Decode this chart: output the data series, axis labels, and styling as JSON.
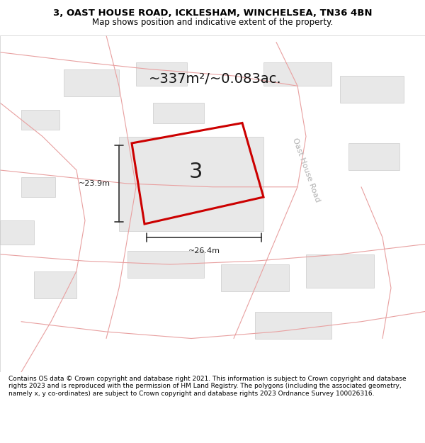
{
  "title": "3, OAST HOUSE ROAD, ICKLESHAM, WINCHELSEA, TN36 4BN",
  "subtitle": "Map shows position and indicative extent of the property.",
  "footer": "Contains OS data © Crown copyright and database right 2021. This information is subject to Crown copyright and database rights 2023 and is reproduced with the permission of HM Land Registry. The polygons (including the associated geometry, namely x, y co-ordinates) are subject to Crown copyright and database rights 2023 Ordnance Survey 100026316.",
  "area_label": "~337m²/~0.083ac.",
  "plot_number": "3",
  "dim_width": "~26.4m",
  "dim_height": "~23.9m",
  "road_label": "Oast House Road",
  "background_color": "#ffffff",
  "map_bg": "#f5f5f5",
  "plot_outline_color": "#cc0000",
  "road_lines_color": "#e8a0a0",
  "building_fill": "#e0e0e0",
  "building_stroke": "#c0c0c0",
  "road_text_color": "#b0b0b0"
}
